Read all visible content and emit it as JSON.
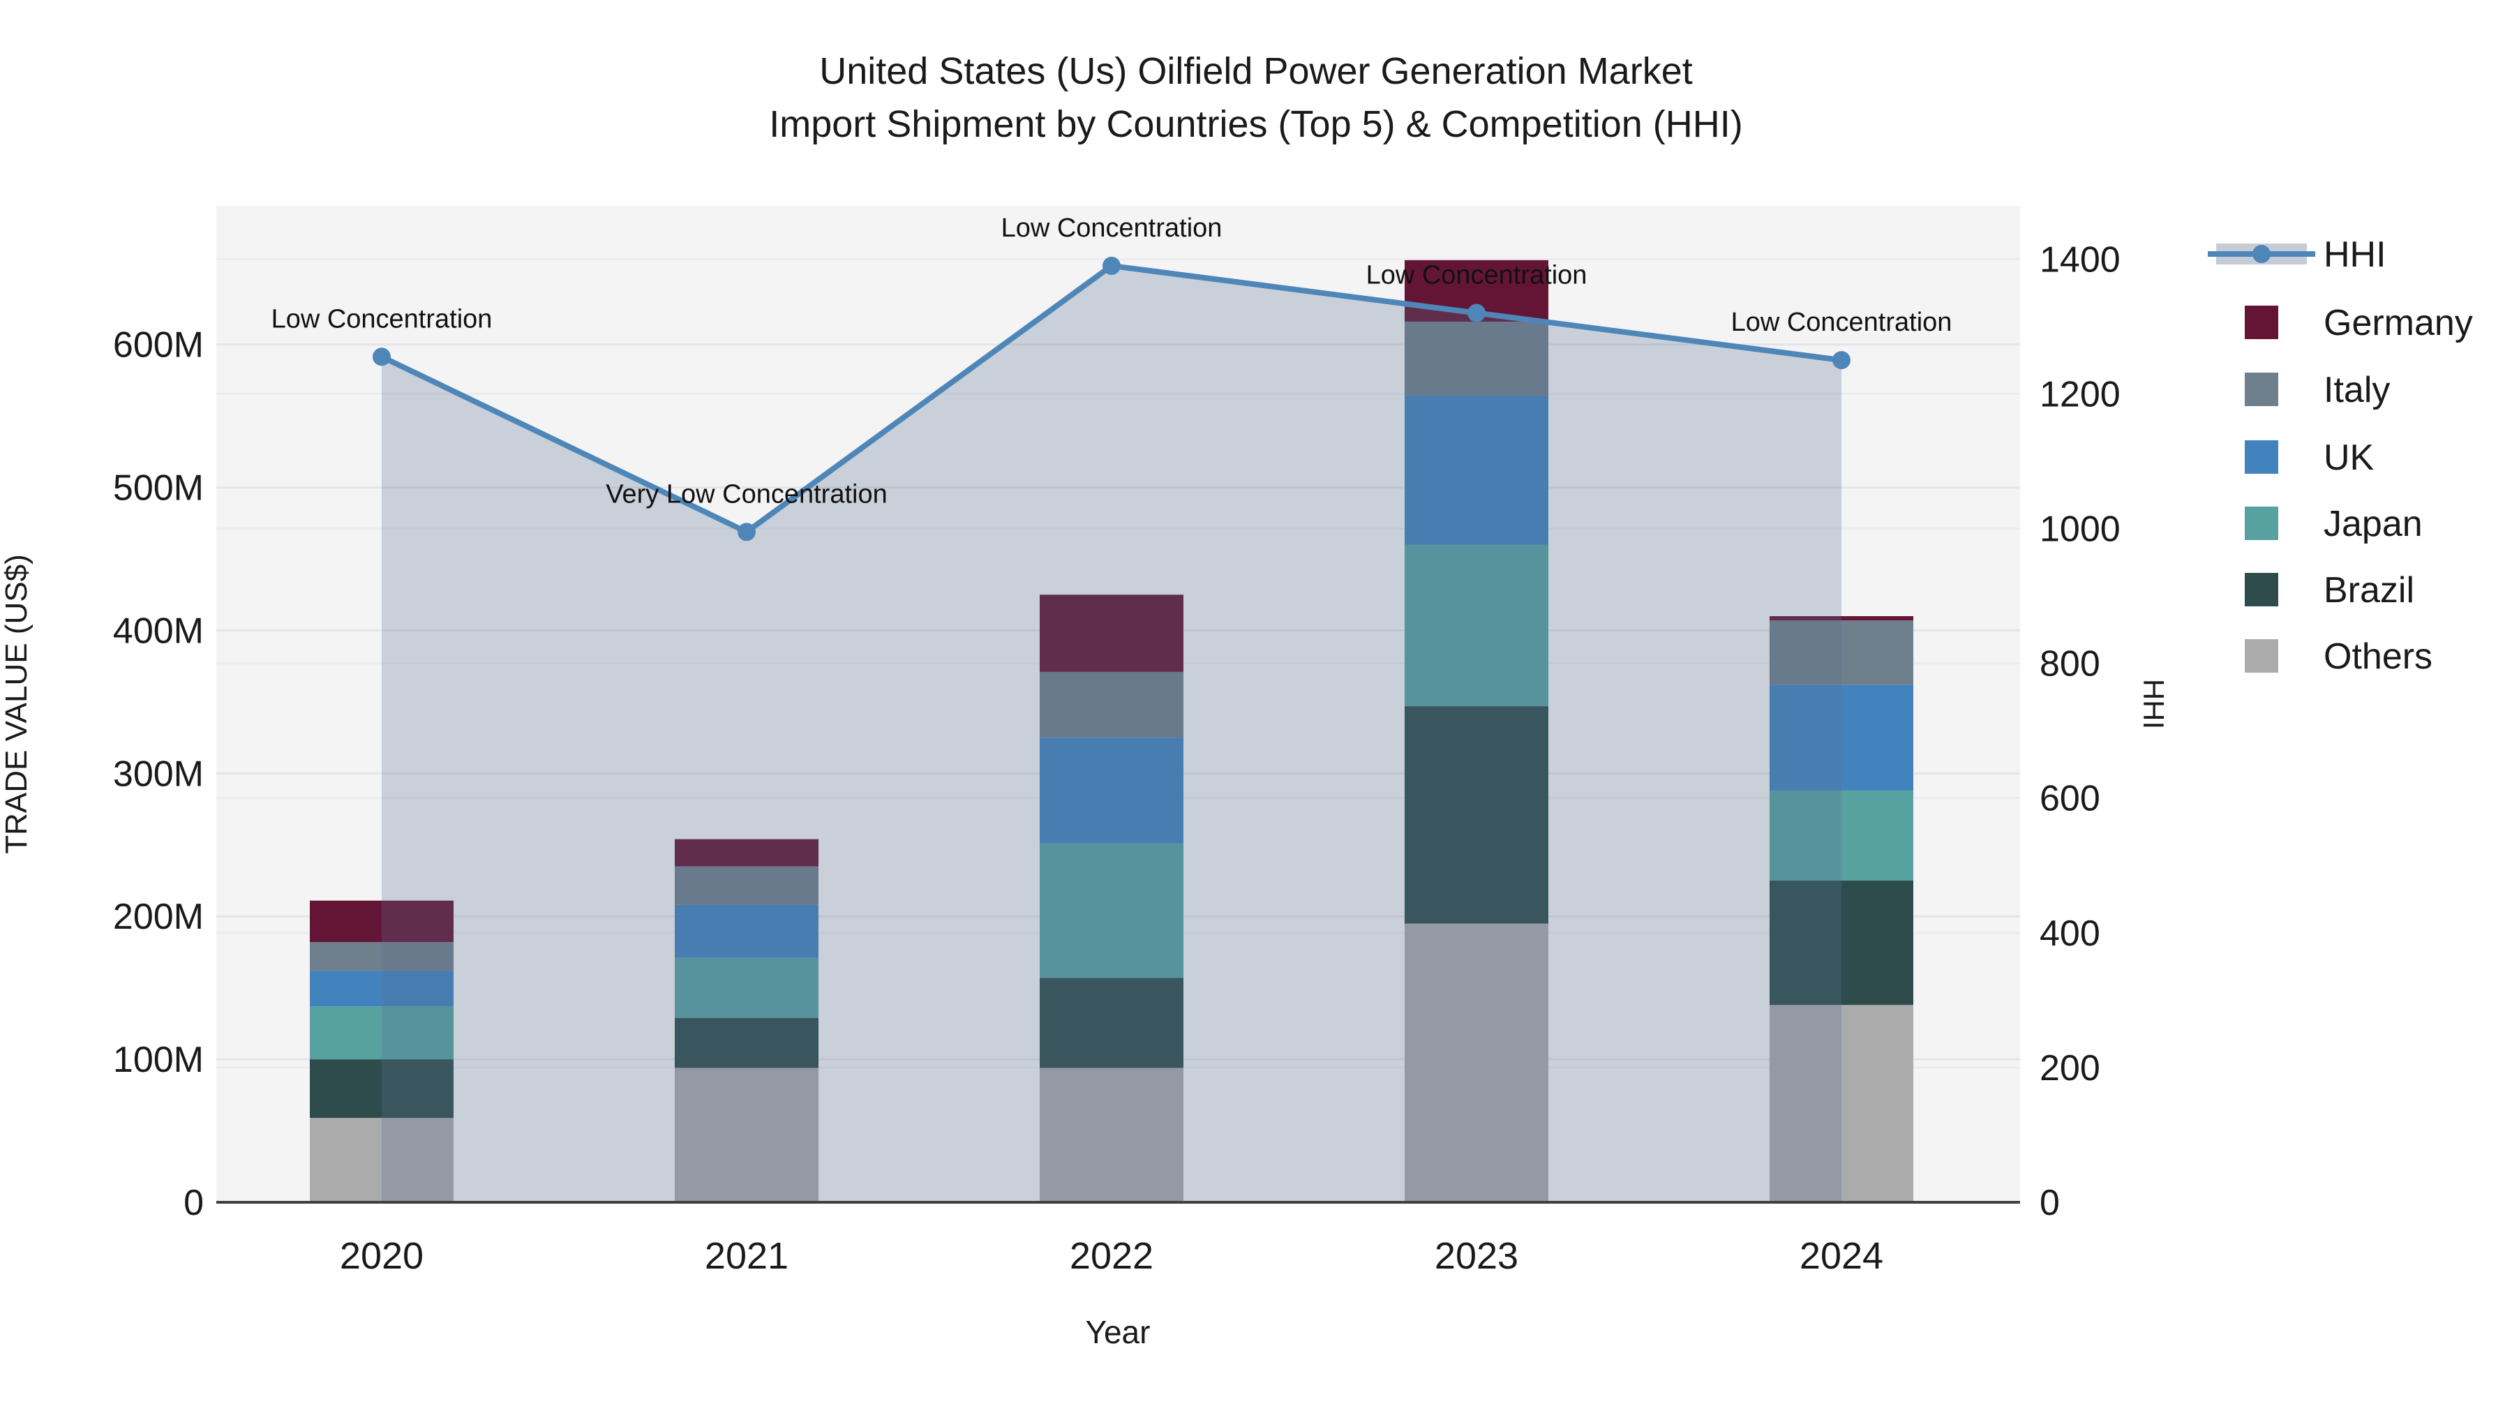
{
  "title": {
    "line1": "United States (Us) Oilfield Power Generation Market",
    "line2": "Import Shipment by Countries (Top 5) & Competition (HHI)"
  },
  "chart_data": {
    "type": "bar+line",
    "categories": [
      "2020",
      "2021",
      "2022",
      "2023",
      "2024"
    ],
    "bar_series": [
      {
        "name": "Germany",
        "color": "#641535",
        "values": [
          29,
          19,
          54,
          43,
          3
        ]
      },
      {
        "name": "Italy",
        "color": "#6F7F8C",
        "values": [
          20,
          27,
          46,
          52,
          45
        ]
      },
      {
        "name": "UK",
        "color": "#4283BD",
        "values": [
          25,
          37,
          74,
          104,
          74
        ]
      },
      {
        "name": "Japan",
        "color": "#57A1A1",
        "values": [
          37,
          42,
          94,
          113,
          63
        ]
      },
      {
        "name": "Brazil",
        "color": "#2E4C4C",
        "values": [
          41,
          35,
          63,
          152,
          87
        ]
      },
      {
        "name": "Others",
        "color": "#ABABAB",
        "values": [
          59,
          94,
          94,
          195,
          138
        ]
      }
    ],
    "stack_order_bottom_to_top": [
      "Others",
      "Brazil",
      "Japan",
      "UK",
      "Italy",
      "Germany"
    ],
    "line_series": {
      "name": "HHI",
      "color": "#4E86B8",
      "area_color": "rgba(90,110,145,0.27)",
      "values": [
        1255,
        995,
        1390,
        1320,
        1250
      ]
    },
    "annotations": [
      "Low Concentration",
      "Very Low Concentration",
      "Low Concentration",
      "Low Concentration",
      "Low Concentration"
    ],
    "left_axis": {
      "label": "TRADE VALUE (US$)",
      "tick_labels": [
        "0",
        "100M",
        "200M",
        "300M",
        "400M",
        "500M",
        "600M"
      ],
      "tick_values": [
        0,
        100,
        200,
        300,
        400,
        500,
        600
      ],
      "range": [
        0,
        697
      ]
    },
    "right_axis": {
      "label": "HHI",
      "tick_labels": [
        "0",
        "200",
        "400",
        "600",
        "800",
        "1000",
        "1200",
        "1400"
      ],
      "tick_values": [
        0,
        200,
        400,
        600,
        800,
        1000,
        1200,
        1400
      ],
      "range": [
        0,
        1479
      ]
    },
    "x_axis": {
      "label": "Year"
    },
    "legend_position": "right",
    "grid": true
  },
  "legend": {
    "items": [
      {
        "label": "HHI",
        "type": "line",
        "color": "#4E86B8",
        "band_color": "#C6CCD6"
      },
      {
        "label": "Germany",
        "type": "square",
        "color": "#641535"
      },
      {
        "label": "Italy",
        "type": "square",
        "color": "#6F7F8C"
      },
      {
        "label": "UK",
        "type": "square",
        "color": "#4283BD"
      },
      {
        "label": "Japan",
        "type": "square",
        "color": "#57A1A1"
      },
      {
        "label": "Brazil",
        "type": "square",
        "color": "#2E4C4C"
      },
      {
        "label": "Others",
        "type": "square",
        "color": "#ABABAB"
      }
    ]
  },
  "colors": {
    "plot_background": "#F4F4F5",
    "grid_left": "#E5E5E8",
    "grid_right": "#ECECEF",
    "axis_line": "#404040",
    "text": "#1A1A1A"
  }
}
